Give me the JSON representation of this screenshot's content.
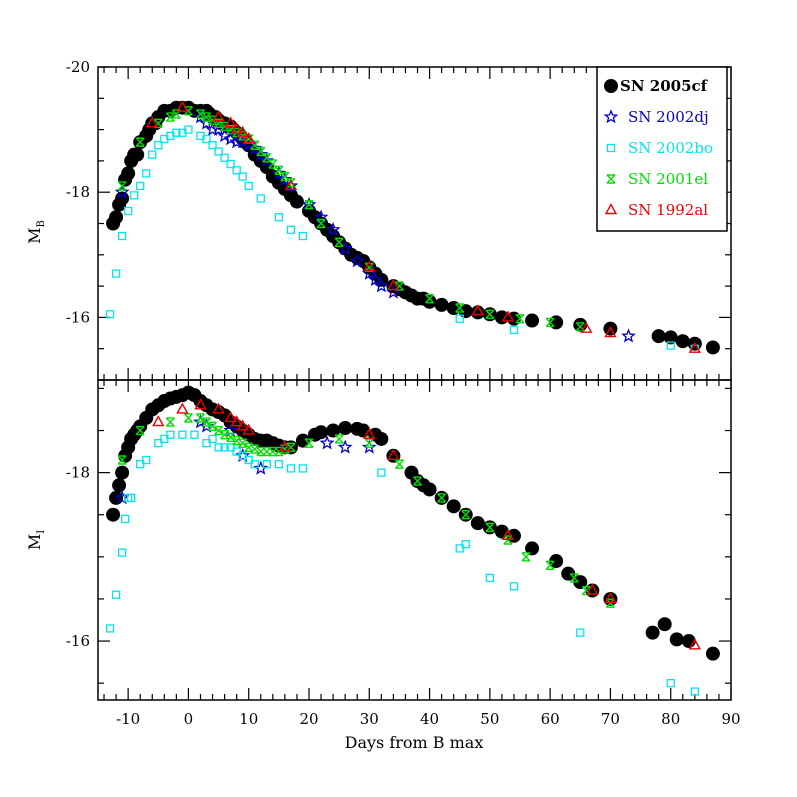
{
  "chart_data": [
    {
      "type": "scatter",
      "panel": "top",
      "ylabel": "M",
      "ylabel_sub": "B",
      "xlabel": "",
      "xlim": [
        -15,
        90
      ],
      "ylim": [
        -15,
        -20
      ],
      "y_inverted": true,
      "x_ticks": [
        -10,
        0,
        10,
        20,
        30,
        40,
        50,
        60,
        70,
        80,
        90
      ],
      "x_tick_labels_shown": false,
      "y_ticks": [
        -20,
        -18,
        -16
      ],
      "y_tick_labels": [
        "-20",
        "-18",
        "-16"
      ],
      "grid": false,
      "legend": {
        "placement": "top-right",
        "entries": [
          {
            "name": "SN 2005cf",
            "marker": "circle",
            "color": "#000000"
          },
          {
            "name": "SN 2002dj",
            "marker": "star",
            "color": "#0000cc"
          },
          {
            "name": "SN 2002bo",
            "marker": "square",
            "color": "#00e5ee"
          },
          {
            "name": "SN 2001el",
            "marker": "cross",
            "color": "#00dd00"
          },
          {
            "name": "SN 1992al",
            "marker": "triangle",
            "color": "#ee0000"
          }
        ]
      },
      "series": [
        {
          "name": "SN 2005cf",
          "marker": "circle",
          "color": "#000000",
          "x": [
            -12.5,
            -12,
            -11.5,
            -11,
            -10.5,
            -10,
            -9.5,
            -9,
            -8.5,
            -8,
            -7,
            -6.5,
            -6,
            -5.5,
            -5,
            -4,
            -3,
            -2,
            -1,
            0,
            1,
            2,
            3,
            3.5,
            4,
            4.5,
            5,
            5.5,
            6,
            6.5,
            7,
            7.5,
            8,
            8.5,
            9,
            9.5,
            10,
            11,
            12,
            13,
            14,
            15,
            16,
            17,
            18,
            20,
            21,
            22,
            23,
            24,
            25,
            26,
            27,
            28,
            29,
            30,
            31,
            32,
            34,
            35,
            36,
            37,
            38,
            39,
            40,
            42,
            44,
            46,
            48,
            50,
            52,
            54,
            57,
            61,
            65,
            70,
            78,
            80,
            82,
            84,
            87
          ],
          "y": [
            -17.5,
            -17.6,
            -17.8,
            -17.9,
            -18.2,
            -18.3,
            -18.5,
            -18.6,
            -18.6,
            -18.8,
            -18.9,
            -19,
            -19.1,
            -19.1,
            -19.2,
            -19.3,
            -19.3,
            -19.35,
            -19.35,
            -19.35,
            -19.3,
            -19.3,
            -19.3,
            -19.25,
            -19.2,
            -19.2,
            -19.15,
            -19.1,
            -19.1,
            -19.05,
            -19.05,
            -19,
            -18.95,
            -18.9,
            -18.85,
            -18.8,
            -18.75,
            -18.6,
            -18.5,
            -18.4,
            -18.25,
            -18.15,
            -18.05,
            -17.95,
            -17.85,
            -17.7,
            -17.6,
            -17.5,
            -17.4,
            -17.3,
            -17.2,
            -17.1,
            -17,
            -16.95,
            -16.9,
            -16.8,
            -16.7,
            -16.6,
            -16.5,
            -16.45,
            -16.4,
            -16.35,
            -16.3,
            -16.3,
            -16.25,
            -16.2,
            -16.15,
            -16.1,
            -16.08,
            -16.05,
            -16,
            -15.98,
            -15.95,
            -15.92,
            -15.88,
            -15.82,
            -15.7,
            -15.68,
            -15.62,
            -15.58,
            -15.52
          ]
        },
        {
          "name": "SN 2002dj",
          "marker": "star",
          "color": "#0000cc",
          "x": [
            -11,
            2,
            3,
            4,
            5,
            6,
            7,
            8,
            9,
            10,
            11,
            12,
            13,
            15,
            16,
            17,
            20,
            22,
            24,
            26,
            28,
            30,
            31,
            32,
            34,
            73
          ],
          "y": [
            -18,
            -19.2,
            -19.1,
            -19,
            -19,
            -18.9,
            -18.85,
            -18.8,
            -18.8,
            -18.75,
            -18.7,
            -18.6,
            -18.5,
            -18.3,
            -18.2,
            -18.1,
            -17.8,
            -17.6,
            -17.4,
            -17.1,
            -16.9,
            -16.7,
            -16.6,
            -16.5,
            -16.4,
            -15.7
          ]
        },
        {
          "name": "SN 2002bo",
          "marker": "square",
          "color": "#00e5ee",
          "x": [
            -13,
            -12,
            -11,
            -10,
            -9,
            -8,
            -7,
            -6,
            -5,
            -4,
            -3,
            -2,
            -1,
            0,
            2,
            3,
            4,
            5,
            6,
            7,
            8,
            9,
            10,
            12,
            15,
            17,
            19,
            45,
            54,
            80,
            84
          ],
          "y": [
            -16.05,
            -16.7,
            -17.3,
            -17.7,
            -17.95,
            -18.1,
            -18.3,
            -18.6,
            -18.75,
            -18.85,
            -18.9,
            -18.95,
            -18.95,
            -19,
            -18.9,
            -18.85,
            -18.75,
            -18.65,
            -18.55,
            -18.45,
            -18.35,
            -18.25,
            -18.1,
            -17.9,
            -17.6,
            -17.4,
            -17.3,
            -15.98,
            -15.8,
            -15.55,
            -15.5
          ]
        },
        {
          "name": "SN 2001el",
          "marker": "cross",
          "color": "#00dd00",
          "x": [
            -11,
            -8,
            -5,
            -3,
            -2,
            0,
            2,
            3,
            4,
            5,
            6,
            7,
            8,
            9,
            10,
            11,
            12,
            13,
            14,
            15,
            16,
            17,
            20,
            22,
            25,
            30,
            35,
            40,
            45,
            50,
            55,
            60,
            65
          ],
          "y": [
            -18.1,
            -18.8,
            -19.1,
            -19.2,
            -19.25,
            -19.3,
            -19.25,
            -19.2,
            -19.15,
            -19.1,
            -19.05,
            -19,
            -18.95,
            -18.9,
            -18.85,
            -18.75,
            -18.65,
            -18.55,
            -18.45,
            -18.35,
            -18.25,
            -18.15,
            -17.8,
            -17.5,
            -17.2,
            -16.8,
            -16.5,
            -16.3,
            -16.15,
            -16.05,
            -15.98,
            -15.92,
            -15.85
          ]
        },
        {
          "name": "SN 1992al",
          "marker": "triangle",
          "color": "#ee0000",
          "x": [
            -6,
            -1,
            5,
            7,
            8,
            9,
            10,
            17,
            30,
            34,
            48,
            53,
            66,
            70,
            84
          ],
          "y": [
            -19.1,
            -19.35,
            -19.2,
            -19.1,
            -19,
            -18.95,
            -18.85,
            -18.1,
            -16.8,
            -16.5,
            -16.1,
            -16.0,
            -15.82,
            -15.75,
            -15.5
          ]
        }
      ]
    },
    {
      "type": "scatter",
      "panel": "bottom",
      "ylabel": "M",
      "ylabel_sub": "I",
      "xlabel": "Days from B max",
      "xlim": [
        -15,
        90
      ],
      "ylim": [
        -15.3,
        -19.1
      ],
      "y_inverted": true,
      "x_ticks": [
        -10,
        0,
        10,
        20,
        30,
        40,
        50,
        60,
        70,
        80,
        90
      ],
      "x_tick_labels": [
        "-10",
        "0",
        "10",
        "20",
        "30",
        "40",
        "50",
        "60",
        "70",
        "80",
        "90"
      ],
      "y_ticks": [
        -18,
        -16
      ],
      "y_tick_labels": [
        "-18",
        "-16"
      ],
      "grid": false,
      "series": [
        {
          "name": "SN 2005cf",
          "marker": "circle",
          "color": "#000000",
          "x": [
            -12.5,
            -12,
            -11.5,
            -11,
            -10.5,
            -10,
            -9.5,
            -9,
            -8.5,
            -8,
            -7,
            -6,
            -5,
            -4,
            -3,
            -2,
            -1,
            0,
            1,
            2,
            3,
            4,
            5,
            6,
            7,
            8,
            9,
            10,
            11,
            12,
            13,
            14,
            15,
            16,
            17,
            19,
            21,
            22,
            24,
            26,
            28,
            29,
            31,
            32,
            34,
            37,
            38,
            39,
            40,
            42,
            44,
            46,
            48,
            50,
            52,
            54,
            57,
            61,
            63,
            65,
            67,
            70,
            77,
            79,
            81,
            83,
            87
          ],
          "y": [
            -17.5,
            -17.7,
            -17.85,
            -18.0,
            -18.2,
            -18.3,
            -18.4,
            -18.45,
            -18.5,
            -18.55,
            -18.65,
            -18.75,
            -18.8,
            -18.85,
            -18.88,
            -18.9,
            -18.92,
            -18.95,
            -18.92,
            -18.85,
            -18.8,
            -18.75,
            -18.72,
            -18.68,
            -18.6,
            -18.55,
            -18.5,
            -18.45,
            -18.4,
            -18.38,
            -18.38,
            -18.35,
            -18.32,
            -18.3,
            -18.3,
            -18.38,
            -18.45,
            -18.48,
            -18.5,
            -18.53,
            -18.52,
            -18.5,
            -18.45,
            -18.4,
            -18.2,
            -18,
            -17.9,
            -17.85,
            -17.8,
            -17.7,
            -17.6,
            -17.5,
            -17.4,
            -17.35,
            -17.3,
            -17.25,
            -17.1,
            -16.95,
            -16.8,
            -16.7,
            -16.6,
            -16.5,
            -16.1,
            -16.2,
            -16.02,
            -16.0,
            -15.85
          ]
        },
        {
          "name": "SN 2002dj",
          "marker": "star",
          "color": "#0000cc",
          "x": [
            -11,
            2,
            3,
            7,
            9,
            12,
            16,
            23,
            26,
            30
          ],
          "y": [
            -17.7,
            -18.6,
            -18.55,
            -18.5,
            -18.2,
            -18.05,
            -18.3,
            -18.35,
            -18.3,
            -18.3
          ]
        },
        {
          "name": "SN 2002bo",
          "marker": "square",
          "color": "#00e5ee",
          "x": [
            -13,
            -12,
            -11,
            -10.5,
            -10,
            -9.5,
            -8,
            -7,
            -5,
            -4,
            -3,
            -1,
            1,
            3,
            4,
            5,
            6,
            7,
            8,
            9,
            10,
            11,
            13,
            15,
            17,
            19,
            32,
            45,
            46,
            50,
            54,
            65,
            80,
            84
          ],
          "y": [
            -16.15,
            -16.55,
            -17.05,
            -17.45,
            -17.7,
            -17.7,
            -18.1,
            -18.15,
            -18.35,
            -18.4,
            -18.45,
            -18.45,
            -18.45,
            -18.35,
            -18.4,
            -18.3,
            -18.3,
            -18.3,
            -18.25,
            -18.2,
            -18.15,
            -18.1,
            -18.1,
            -18.1,
            -18.05,
            -18.05,
            -18.0,
            -17.1,
            -17.15,
            -16.75,
            -16.65,
            -16.1,
            -15.5,
            -15.4
          ]
        },
        {
          "name": "SN 2001el",
          "marker": "cross",
          "color": "#00dd00",
          "x": [
            -11,
            -8,
            -3,
            0,
            2,
            3,
            4,
            5,
            6,
            7,
            8,
            9,
            10,
            11,
            12,
            13,
            14,
            15,
            16,
            17,
            20,
            25,
            30,
            35,
            38,
            42,
            46,
            50,
            53,
            56,
            60,
            64,
            66,
            70
          ],
          "y": [
            -18.15,
            -18.5,
            -18.6,
            -18.65,
            -18.65,
            -18.6,
            -18.55,
            -18.5,
            -18.45,
            -18.42,
            -18.38,
            -18.35,
            -18.3,
            -18.28,
            -18.25,
            -18.25,
            -18.25,
            -18.25,
            -18.28,
            -18.3,
            -18.35,
            -18.4,
            -18.35,
            -18.1,
            -17.9,
            -17.7,
            -17.5,
            -17.35,
            -17.2,
            -17.0,
            -16.9,
            -16.75,
            -16.6,
            -16.45
          ]
        },
        {
          "name": "SN 1992al",
          "marker": "triangle",
          "color": "#ee0000",
          "x": [
            -5,
            -1,
            2,
            5,
            7,
            8,
            9,
            10,
            16,
            30,
            34,
            53,
            67,
            70,
            84
          ],
          "y": [
            -18.6,
            -18.75,
            -18.8,
            -18.75,
            -18.65,
            -18.6,
            -18.55,
            -18.5,
            -18.3,
            -18.45,
            -18.2,
            -17.25,
            -16.6,
            -16.5,
            -15.95
          ]
        }
      ]
    }
  ]
}
